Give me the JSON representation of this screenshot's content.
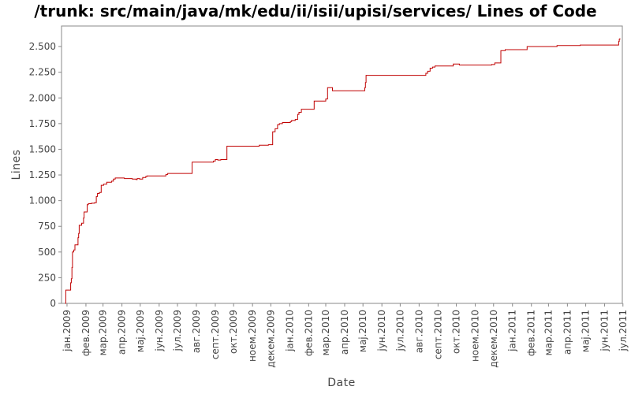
{
  "chart_data": {
    "type": "line",
    "title": "/trunk: src/main/java/mk/edu/ii/isii/upisi/services/ Lines of Code",
    "xlabel": "Date",
    "ylabel": "Lines",
    "ylim": [
      0,
      2700
    ],
    "xlim": [
      "2008-12-23",
      "2011-06-30"
    ],
    "grid": false,
    "legend": "none",
    "line_color": "#c00000",
    "y_ticks": [
      {
        "value": 0,
        "label": "0"
      },
      {
        "value": 250,
        "label": "250"
      },
      {
        "value": 500,
        "label": "500"
      },
      {
        "value": 750,
        "label": "750"
      },
      {
        "value": 1000,
        "label": "1.000"
      },
      {
        "value": 1250,
        "label": "1.250"
      },
      {
        "value": 1500,
        "label": "1.500"
      },
      {
        "value": 1750,
        "label": "1.750"
      },
      {
        "value": 2000,
        "label": "2.000"
      },
      {
        "value": 2250,
        "label": "2.250"
      },
      {
        "value": 2500,
        "label": "2.500"
      }
    ],
    "x_ticks": [
      {
        "date": "2009-01-01",
        "label": "јан.2009"
      },
      {
        "date": "2009-02-01",
        "label": "фев.2009"
      },
      {
        "date": "2009-03-01",
        "label": "мар.2009"
      },
      {
        "date": "2009-04-01",
        "label": "апр.2009"
      },
      {
        "date": "2009-05-01",
        "label": "мај.2009"
      },
      {
        "date": "2009-06-01",
        "label": "јун.2009"
      },
      {
        "date": "2009-07-01",
        "label": "јул.2009"
      },
      {
        "date": "2009-08-01",
        "label": "авг.2009"
      },
      {
        "date": "2009-09-01",
        "label": "септ.2009"
      },
      {
        "date": "2009-10-01",
        "label": "окт.2009"
      },
      {
        "date": "2009-11-01",
        "label": "ноем.2009"
      },
      {
        "date": "2009-12-01",
        "label": "декем.2009"
      },
      {
        "date": "2010-01-01",
        "label": "јан.2010"
      },
      {
        "date": "2010-02-01",
        "label": "фев.2010"
      },
      {
        "date": "2010-03-01",
        "label": "мар.2010"
      },
      {
        "date": "2010-04-01",
        "label": "апр.2010"
      },
      {
        "date": "2010-05-01",
        "label": "мај.2010"
      },
      {
        "date": "2010-06-01",
        "label": "јун.2010"
      },
      {
        "date": "2010-07-01",
        "label": "јул.2010"
      },
      {
        "date": "2010-08-01",
        "label": "авг.2010"
      },
      {
        "date": "2010-09-01",
        "label": "септ.2010"
      },
      {
        "date": "2010-10-01",
        "label": "окт.2010"
      },
      {
        "date": "2010-11-01",
        "label": "ноем.2010"
      },
      {
        "date": "2010-12-01",
        "label": "декем.2010"
      },
      {
        "date": "2011-01-01",
        "label": "јан.2011"
      },
      {
        "date": "2011-02-01",
        "label": "фев.2011"
      },
      {
        "date": "2011-03-01",
        "label": "мар.2011"
      },
      {
        "date": "2011-04-01",
        "label": "апр.2011"
      },
      {
        "date": "2011-05-01",
        "label": "мај.2011"
      },
      {
        "date": "2011-06-01",
        "label": "јун.2011"
      },
      {
        "date": "2011-07-01",
        "label": "јул.2011"
      }
    ],
    "series": [
      {
        "points": [
          [
            "2008-12-29",
            0
          ],
          [
            "2008-12-30",
            130
          ],
          [
            "2009-01-07",
            200
          ],
          [
            "2009-01-08",
            240
          ],
          [
            "2009-01-09",
            350
          ],
          [
            "2009-01-10",
            500
          ],
          [
            "2009-01-12",
            520
          ],
          [
            "2009-01-14",
            570
          ],
          [
            "2009-01-19",
            640
          ],
          [
            "2009-01-20",
            680
          ],
          [
            "2009-01-21",
            760
          ],
          [
            "2009-01-25",
            780
          ],
          [
            "2009-01-28",
            830
          ],
          [
            "2009-01-29",
            890
          ],
          [
            "2009-02-03",
            960
          ],
          [
            "2009-02-05",
            970
          ],
          [
            "2009-02-10",
            975
          ],
          [
            "2009-02-15",
            980
          ],
          [
            "2009-02-18",
            1040
          ],
          [
            "2009-02-20",
            1070
          ],
          [
            "2009-02-23",
            1080
          ],
          [
            "2009-02-26",
            1150
          ],
          [
            "2009-03-02",
            1160
          ],
          [
            "2009-03-07",
            1180
          ],
          [
            "2009-03-15",
            1190
          ],
          [
            "2009-03-18",
            1210
          ],
          [
            "2009-03-21",
            1220
          ],
          [
            "2009-04-05",
            1215
          ],
          [
            "2009-04-18",
            1210
          ],
          [
            "2009-04-24",
            1205
          ],
          [
            "2009-04-26",
            1215
          ],
          [
            "2009-04-30",
            1210
          ],
          [
            "2009-05-05",
            1225
          ],
          [
            "2009-05-10",
            1235
          ],
          [
            "2009-05-12",
            1240
          ],
          [
            "2009-06-12",
            1255
          ],
          [
            "2009-06-15",
            1265
          ],
          [
            "2009-07-25",
            1375
          ],
          [
            "2009-08-29",
            1385
          ],
          [
            "2009-09-01",
            1400
          ],
          [
            "2009-09-05",
            1395
          ],
          [
            "2009-09-10",
            1400
          ],
          [
            "2009-09-20",
            1530
          ],
          [
            "2009-11-12",
            1540
          ],
          [
            "2009-11-27",
            1545
          ],
          [
            "2009-12-04",
            1670
          ],
          [
            "2009-12-08",
            1700
          ],
          [
            "2009-12-12",
            1740
          ],
          [
            "2009-12-15",
            1750
          ],
          [
            "2009-12-20",
            1760
          ],
          [
            "2010-01-02",
            1770
          ],
          [
            "2010-01-04",
            1780
          ],
          [
            "2010-01-10",
            1790
          ],
          [
            "2010-01-14",
            1840
          ],
          [
            "2010-01-16",
            1860
          ],
          [
            "2010-01-20",
            1890
          ],
          [
            "2010-02-10",
            1970
          ],
          [
            "2010-03-01",
            1990
          ],
          [
            "2010-03-04",
            2100
          ],
          [
            "2010-03-12",
            2070
          ],
          [
            "2010-05-04",
            2100
          ],
          [
            "2010-05-05",
            2150
          ],
          [
            "2010-05-06",
            2220
          ],
          [
            "2010-08-12",
            2240
          ],
          [
            "2010-08-15",
            2260
          ],
          [
            "2010-08-19",
            2290
          ],
          [
            "2010-08-23",
            2300
          ],
          [
            "2010-08-27",
            2310
          ],
          [
            "2010-09-26",
            2330
          ],
          [
            "2010-10-06",
            2320
          ],
          [
            "2010-11-28",
            2325
          ],
          [
            "2010-12-03",
            2340
          ],
          [
            "2010-12-13",
            2460
          ],
          [
            "2010-12-20",
            2470
          ],
          [
            "2011-01-25",
            2500
          ],
          [
            "2011-03-15",
            2510
          ],
          [
            "2011-04-22",
            2515
          ],
          [
            "2011-06-24",
            2550
          ],
          [
            "2011-06-25",
            2570
          ],
          [
            "2011-06-26",
            2580
          ]
        ]
      }
    ]
  }
}
